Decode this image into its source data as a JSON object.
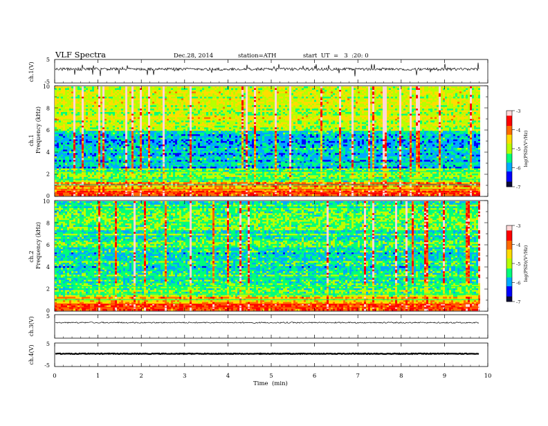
{
  "header": {
    "title": "VLF  Spectra",
    "date": "Dec.28, 2014",
    "station": "station=ATH",
    "start": "start  UT  =   3  :20: 0"
  },
  "colors": {
    "axis": "#000000",
    "colormap": [
      "#0b0b35",
      "#0000ff",
      "#00aaff",
      "#00ff7a",
      "#b7ff00",
      "#ffdc00",
      "#ff6a00",
      "#ff0000",
      "#ffd8d8"
    ]
  },
  "chart_data": [
    {
      "type": "line",
      "name": "panel-ch1",
      "ylabel": "ch.1(V)",
      "ylim": [
        -5,
        5
      ],
      "yticks": [
        "5",
        "-5"
      ],
      "x_end_min": 9.8,
      "baseline": 0,
      "description": "waveform with spikes"
    },
    {
      "type": "heatmap",
      "name": "panel-ch1-spectrogram",
      "ylabel": "Frequency  (kHz)",
      "ylabel2": "ch.1",
      "ylim": [
        0,
        10
      ],
      "yticks": [
        "0",
        "2",
        "4",
        "6",
        "8",
        "10"
      ],
      "colorbar": {
        "label": "log(PSD)(V²/Hz)",
        "ticks": [
          "-3",
          "-4",
          "-5",
          "-6",
          "-7"
        ],
        "range": [
          -7,
          -3
        ]
      }
    },
    {
      "type": "heatmap",
      "name": "panel-ch2-spectrogram",
      "ylabel": "Frequency  (kHz)",
      "ylabel2": "ch.2",
      "ylim": [
        0,
        10
      ],
      "yticks": [
        "0",
        "2",
        "4",
        "6",
        "8",
        "10"
      ],
      "colorbar": {
        "label": "log(PSD)(V²/Hz)",
        "ticks": [
          "-3",
          "-4",
          "-5",
          "-6",
          "-7"
        ],
        "range": [
          -7,
          -3
        ]
      }
    },
    {
      "type": "line",
      "name": "panel-ch3",
      "ylabel": "ch.3(V)",
      "ylim": [
        -5,
        5
      ],
      "yticks": [
        "5"
      ],
      "x_end_min": 9.8,
      "baseline": 0
    },
    {
      "type": "line",
      "name": "panel-ch4",
      "ylabel": "ch.4(V)",
      "ylim": [
        -5,
        5
      ],
      "yticks": [
        "5",
        "-5"
      ],
      "x_end_min": 9.8,
      "baseline": 0
    }
  ],
  "xaxis": {
    "label": "Time  (min)",
    "ticks": [
      "0",
      "1",
      "2",
      "3",
      "4",
      "5",
      "6",
      "7",
      "8",
      "9",
      "10"
    ],
    "xlim": [
      0,
      10
    ]
  }
}
